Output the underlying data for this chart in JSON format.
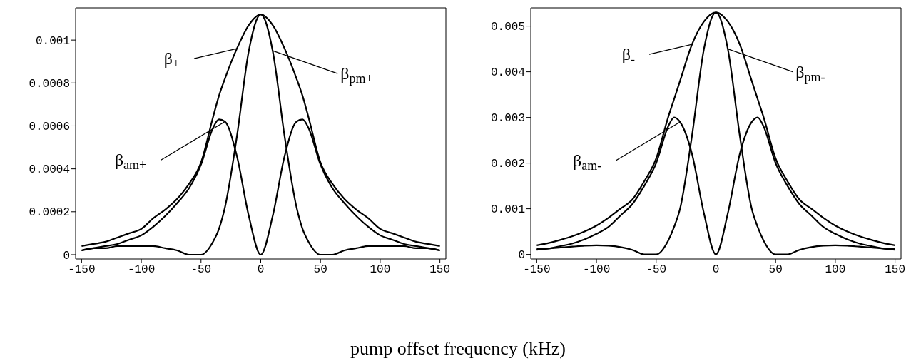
{
  "chart_data": [
    {
      "type": "line",
      "xlabel": "pump offset frequency (kHz)",
      "x": [
        -150,
        -140,
        -130,
        -120,
        -110,
        -100,
        -90,
        -80,
        -70,
        -60,
        -50,
        -40,
        -35,
        -30,
        -20,
        -10,
        0,
        10,
        20,
        30,
        35,
        40,
        50,
        60,
        70,
        80,
        90,
        100,
        110,
        120,
        130,
        140,
        150
      ],
      "series": [
        {
          "color": "#000000",
          "values": [
            4e-05,
            5e-05,
            6e-05,
            8e-05,
            0.0001,
            0.00012,
            0.00017,
            0.00021,
            0.00026,
            0.00033,
            0.00043,
            0.00064,
            0.00074,
            0.00082,
            0.00096,
            0.00107,
            0.00112,
            0.00107,
            0.00096,
            0.00082,
            0.00074,
            0.00064,
            0.00043,
            0.00033,
            0.00026,
            0.00021,
            0.00017,
            0.00012,
            0.0001,
            8e-05,
            6e-05,
            5e-05,
            4e-05
          ]
        },
        {
          "color": "#000000",
          "values": [
            2e-05,
            3e-05,
            4e-05,
            5e-05,
            7e-05,
            9e-05,
            0.00013,
            0.00018,
            0.00024,
            0.00031,
            0.00042,
            0.00059,
            0.00063,
            0.00062,
            0.00046,
            0.00018,
            0,
            0.00018,
            0.00046,
            0.00062,
            0.00063,
            0.00059,
            0.00042,
            0.00031,
            0.00024,
            0.00018,
            0.00013,
            9e-05,
            7e-05,
            5e-05,
            4e-05,
            3e-05,
            2e-05
          ]
        },
        {
          "color": "#000000",
          "values": [
            2e-05,
            3e-05,
            3e-05,
            4e-05,
            4e-05,
            4e-05,
            4e-05,
            3e-05,
            2e-05,
            0,
            0,
            6e-05,
            0.00012,
            0.00022,
            0.00055,
            0.00095,
            0.00112,
            0.00095,
            0.00055,
            0.00022,
            0.00012,
            6e-05,
            0,
            0,
            2e-05,
            3e-05,
            4e-05,
            4e-05,
            4e-05,
            4e-05,
            3e-05,
            3e-05,
            2e-05
          ]
        }
      ],
      "xlim": [
        -155,
        155
      ],
      "xticks": [
        -150,
        -100,
        -50,
        0,
        50,
        100,
        150
      ],
      "ylim": [
        -2e-05,
        0.00115
      ],
      "yticks": [
        0,
        0.0002,
        0.0004,
        0.0006,
        0.0008,
        0.001
      ],
      "annotations": [
        {
          "text": "β$_{+}$",
          "x": -20,
          "y": 0.00096
        },
        {
          "text": "β$_{pm+}$",
          "x": 10,
          "y": 0.00095
        },
        {
          "text": "β$_{am+}$",
          "x": -30,
          "y": 0.00062
        }
      ]
    },
    {
      "type": "line",
      "x": [
        -150,
        -140,
        -130,
        -120,
        -110,
        -100,
        -90,
        -80,
        -70,
        -60,
        -50,
        -40,
        -35,
        -30,
        -20,
        -10,
        0,
        10,
        20,
        30,
        35,
        40,
        50,
        60,
        70,
        80,
        90,
        100,
        110,
        120,
        130,
        140,
        150
      ],
      "series": [
        {
          "color": "#000000",
          "values": [
            0.0002,
            0.00025,
            0.00032,
            0.0004,
            0.0005,
            0.00063,
            0.0008,
            0.001,
            0.0012,
            0.0016,
            0.0021,
            0.003,
            0.0034,
            0.0038,
            0.0046,
            0.0051,
            0.0053,
            0.0051,
            0.0046,
            0.0038,
            0.0034,
            0.003,
            0.0021,
            0.0016,
            0.0012,
            0.001,
            0.0008,
            0.00063,
            0.0005,
            0.0004,
            0.00032,
            0.00025,
            0.0002
          ]
        },
        {
          "color": "#000000",
          "values": [
            0.0001,
            0.00013,
            0.00018,
            0.00024,
            0.00033,
            0.00045,
            0.0006,
            0.00085,
            0.0011,
            0.0015,
            0.002,
            0.0028,
            0.003,
            0.0029,
            0.0022,
            0.0009,
            0,
            0.0009,
            0.0022,
            0.0029,
            0.003,
            0.0028,
            0.002,
            0.0015,
            0.0011,
            0.00085,
            0.0006,
            0.00045,
            0.00033,
            0.00024,
            0.00018,
            0.00013,
            0.0001
          ]
        },
        {
          "color": "#000000",
          "values": [
            0.00012,
            0.00013,
            0.00015,
            0.00017,
            0.00019,
            0.0002,
            0.00019,
            0.00016,
            0.0001,
            0,
            0,
            0.0003,
            0.0006,
            0.001,
            0.0026,
            0.0045,
            0.0053,
            0.0045,
            0.0026,
            0.001,
            0.0006,
            0.0003,
            0,
            0,
            0.0001,
            0.00016,
            0.00019,
            0.0002,
            0.00019,
            0.00017,
            0.00015,
            0.00013,
            0.00012
          ]
        }
      ],
      "xlim": [
        -155,
        155
      ],
      "xticks": [
        -150,
        -100,
        -50,
        0,
        50,
        100,
        150
      ],
      "ylim": [
        -0.0001,
        0.0054
      ],
      "yticks": [
        0,
        0.001,
        0.002,
        0.003,
        0.004,
        0.005
      ],
      "annotations": [
        {
          "text": "β$_{-}$",
          "x": -20,
          "y": 0.0046
        },
        {
          "text": "β$_{pm-}$",
          "x": 10,
          "y": 0.0045
        },
        {
          "text": "β$_{am-}$",
          "x": -30,
          "y": 0.0029
        }
      ]
    }
  ]
}
